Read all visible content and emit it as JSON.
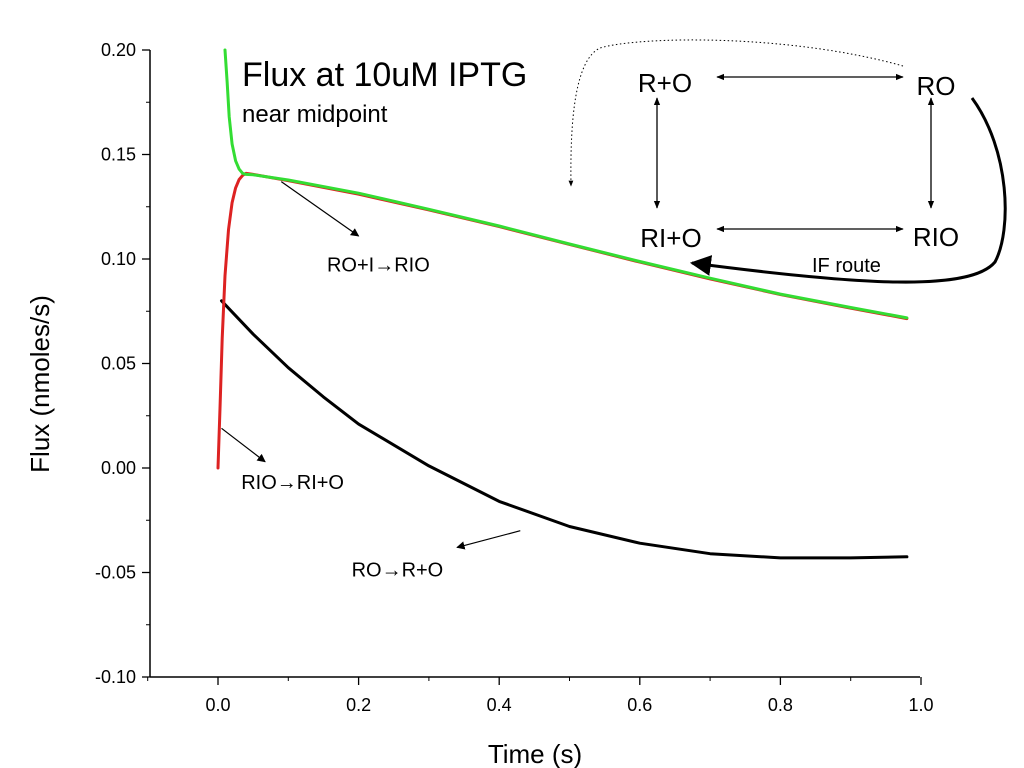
{
  "chart_data": {
    "type": "line",
    "title": "Flux at 10uM IPTG",
    "subtitle": "near midpoint",
    "xlabel": "Time (s)",
    "ylabel": "Flux (nmoles/s)",
    "xlim": [
      -0.1,
      1.0
    ],
    "ylim": [
      -0.1,
      0.2
    ],
    "x_ticks": [
      0.0,
      0.2,
      0.4,
      0.6,
      0.8,
      1.0
    ],
    "x_tick_labels": [
      "0.0",
      "0.2",
      "0.4",
      "0.6",
      "0.8",
      "1.0"
    ],
    "y_ticks": [
      -0.1,
      -0.05,
      0.0,
      0.05,
      0.1,
      0.15,
      0.2
    ],
    "y_tick_labels": [
      "-0.10",
      "-0.05",
      "0.00",
      "0.05",
      "0.10",
      "0.15",
      "0.20"
    ],
    "grid": false,
    "legend": "none",
    "series": [
      {
        "color": "#000000",
        "x": [
          0.005,
          0.05,
          0.1,
          0.15,
          0.2,
          0.3,
          0.4,
          0.5,
          0.6,
          0.7,
          0.8,
          0.9,
          0.98
        ],
        "y": [
          0.08,
          0.064,
          0.048,
          0.034,
          0.021,
          0.001,
          -0.016,
          -0.028,
          -0.036,
          -0.041,
          -0.043,
          -0.043,
          -0.0425
        ]
      },
      {
        "color": "#dd2222",
        "x": [
          0.0,
          0.003,
          0.006,
          0.01,
          0.015,
          0.02,
          0.025,
          0.03,
          0.035,
          0.04,
          0.05,
          0.1,
          0.2,
          0.3,
          0.4,
          0.5,
          0.6,
          0.7,
          0.8,
          0.9,
          0.98
        ],
        "y": [
          0.0,
          0.03,
          0.062,
          0.092,
          0.114,
          0.127,
          0.134,
          0.138,
          0.14,
          0.141,
          0.1405,
          0.1375,
          0.131,
          0.1235,
          0.1155,
          0.107,
          0.0985,
          0.0905,
          0.083,
          0.0765,
          0.0715
        ]
      },
      {
        "color": "#33dd33",
        "x": [
          0.01,
          0.013,
          0.016,
          0.02,
          0.025,
          0.03,
          0.035,
          0.04,
          0.05,
          0.1,
          0.2,
          0.3,
          0.4,
          0.5,
          0.6,
          0.7,
          0.8,
          0.9,
          0.98
        ],
        "y": [
          0.2,
          0.185,
          0.168,
          0.155,
          0.147,
          0.143,
          0.141,
          0.1405,
          0.1403,
          0.1378,
          0.1315,
          0.1238,
          0.1158,
          0.1072,
          0.0988,
          0.0908,
          0.0832,
          0.0768,
          0.0718
        ]
      }
    ],
    "annotations": [
      {
        "text": "RO+I→RIO",
        "x": 0.155,
        "y": 0.094,
        "arrow_from": [
          0.09,
          0.137
        ],
        "arrow_to": [
          0.2,
          0.111
        ]
      },
      {
        "text": "RIO→RI+O",
        "x": 0.033,
        "y": -0.01,
        "arrow_from": [
          0.005,
          0.019
        ],
        "arrow_to": [
          0.067,
          0.003
        ]
      },
      {
        "text": "RO→R+O",
        "x": 0.19,
        "y": -0.052,
        "arrow_from": [
          0.43,
          -0.03
        ],
        "arrow_to": [
          0.34,
          -0.038
        ]
      }
    ],
    "diagram": {
      "nodes": {
        "ro_free": "R+O",
        "ro": "RO",
        "ri_free": "RI+O",
        "rio": "RIO"
      },
      "route_label": "IF route"
    }
  }
}
